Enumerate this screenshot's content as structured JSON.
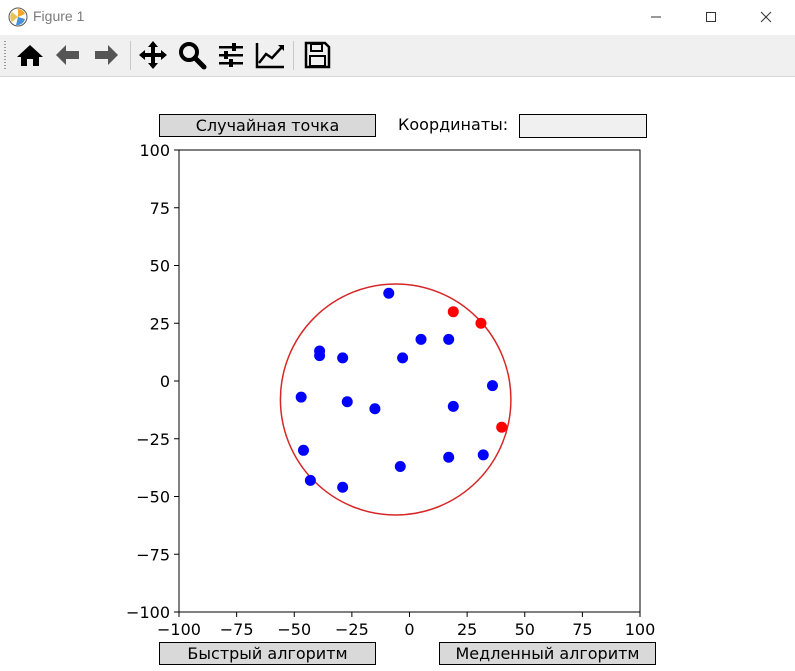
{
  "window": {
    "title": "Figure 1"
  },
  "toolbar": {
    "tools": [
      {
        "name": "home-icon"
      },
      {
        "name": "back-arrow-icon"
      },
      {
        "name": "forward-arrow-icon"
      },
      {
        "name": "pan-move-icon"
      },
      {
        "name": "zoom-magnifier-icon"
      },
      {
        "name": "configure-subplots-icon"
      },
      {
        "name": "edit-axis-icon"
      },
      {
        "name": "save-icon"
      }
    ]
  },
  "controls": {
    "random_point_label": "Случайная точка",
    "coordinates_label": "Координаты:",
    "coordinates_value": "",
    "fast_algorithm_label": "Быстрый алгоритм",
    "slow_algorithm_label": "Медленный алгоритм"
  },
  "chart_data": {
    "type": "scatter",
    "title": "",
    "xlabel": "",
    "ylabel": "",
    "xlim": [
      -100,
      100
    ],
    "ylim": [
      -100,
      100
    ],
    "xticks": [
      "−100",
      "−75",
      "−50",
      "−25",
      "0",
      "25",
      "50",
      "75",
      "100"
    ],
    "yticks": [
      "100",
      "75",
      "50",
      "25",
      "0",
      "−25",
      "−50",
      "−75",
      "−100"
    ],
    "grid": false,
    "series": [
      {
        "color": "#0000ff",
        "points": [
          [
            -9,
            38
          ],
          [
            -39,
            13
          ],
          [
            -39,
            11
          ],
          [
            -29,
            10
          ],
          [
            -3,
            10
          ],
          [
            5,
            18
          ],
          [
            17,
            18
          ],
          [
            36,
            -2
          ],
          [
            -47,
            -7
          ],
          [
            -27,
            -9
          ],
          [
            -15,
            -12
          ],
          [
            19,
            -11
          ],
          [
            -46,
            -30
          ],
          [
            -43,
            -43
          ],
          [
            -29,
            -46
          ],
          [
            -4,
            -37
          ],
          [
            17,
            -33
          ],
          [
            32,
            -32
          ]
        ]
      },
      {
        "color": "#ff0000",
        "points": [
          [
            19,
            30
          ],
          [
            31,
            25
          ],
          [
            40,
            -20
          ]
        ]
      }
    ],
    "circle": {
      "center": [
        -6,
        -8
      ],
      "radius": 50,
      "color": "#d62728"
    }
  }
}
